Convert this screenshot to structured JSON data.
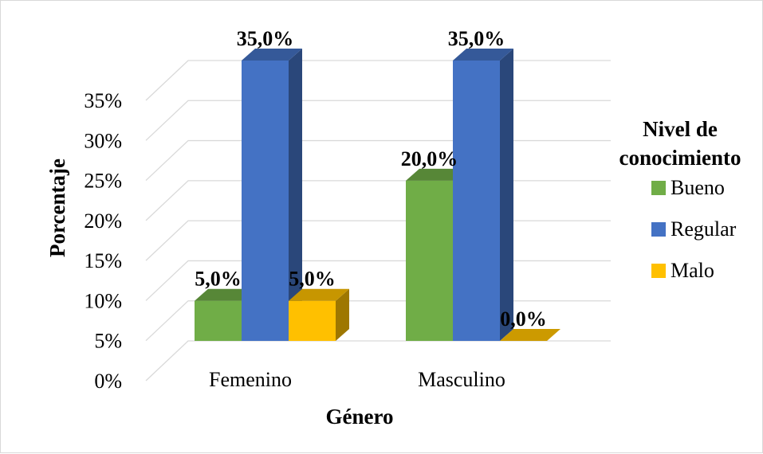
{
  "chart_data": {
    "type": "bar",
    "title": "",
    "xlabel": "Género",
    "ylabel": "Porcentaje",
    "categories": [
      "Femenino",
      "Masculino"
    ],
    "series": [
      {
        "name": "Bueno",
        "values": [
          5,
          20
        ],
        "color": "#70ad47",
        "labels": [
          "5,0%",
          "20,0%"
        ]
      },
      {
        "name": "Regular",
        "values": [
          35,
          35
        ],
        "color": "#4472c4",
        "labels": [
          "35,0%",
          "35,0%"
        ]
      },
      {
        "name": "Malo",
        "values": [
          5,
          0
        ],
        "color": "#ffc000",
        "labels": [
          "5,0%",
          "0,0%"
        ]
      }
    ],
    "ylim": [
      0,
      35
    ],
    "yticks": [
      0,
      5,
      10,
      15,
      20,
      25,
      30,
      35
    ],
    "ytick_labels": [
      "0%",
      "5%",
      "10%",
      "15%",
      "20%",
      "25%",
      "30%",
      "35%"
    ],
    "grid": true,
    "legend": {
      "title_lines": [
        "Nivel de",
        "conocimiento"
      ],
      "placement": "right"
    },
    "style": "3d-clustered-column"
  }
}
